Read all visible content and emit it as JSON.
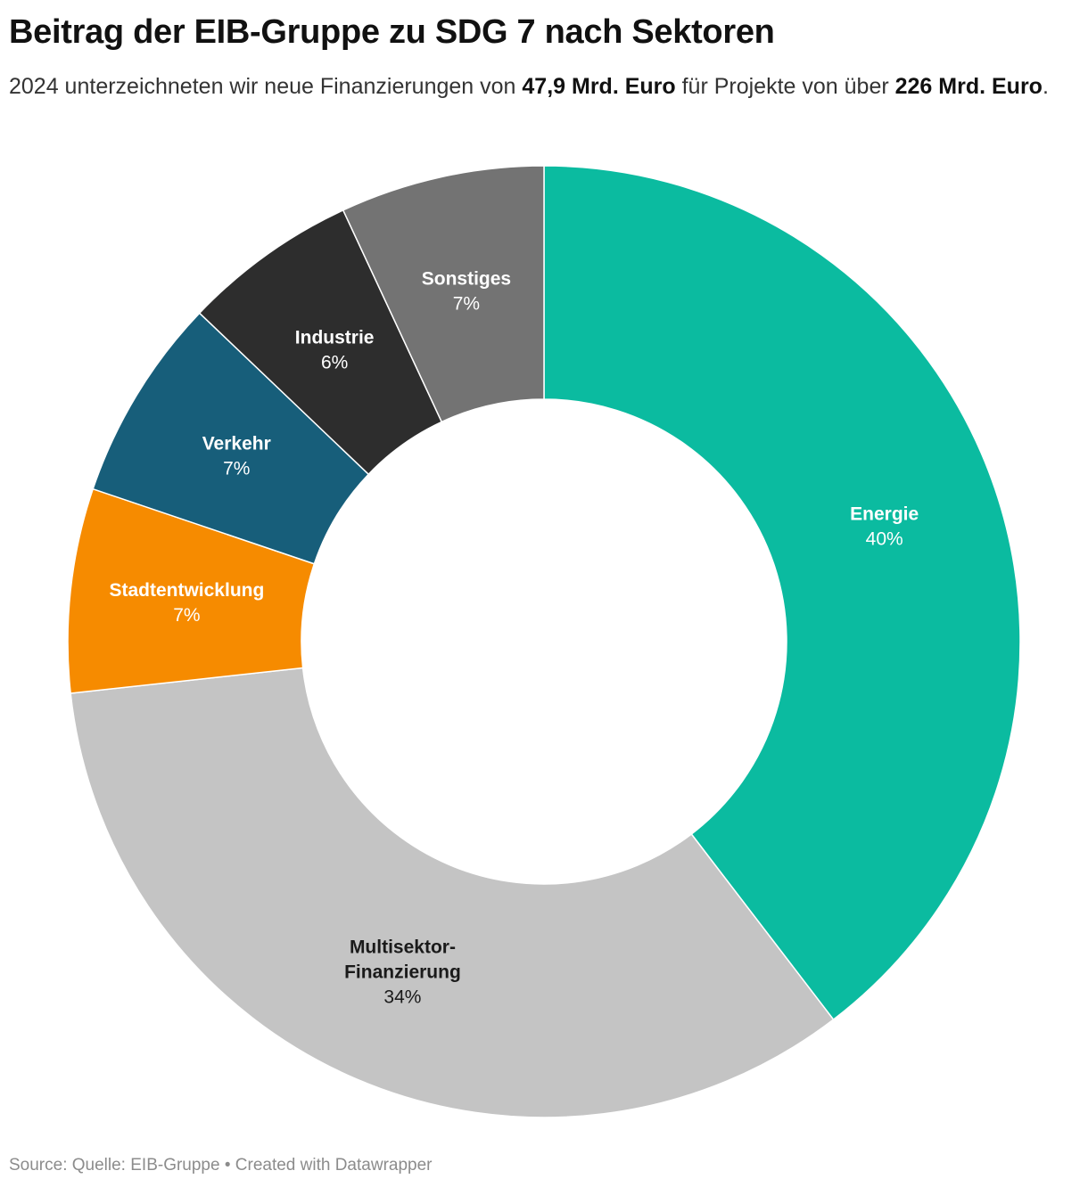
{
  "header": {
    "title": "Beitrag der EIB-Gruppe zu SDG 7 nach Sektoren",
    "subtitle_pre": "2024 unterzeichneten wir neue Finanzierungen von ",
    "subtitle_amount_1": "47,9 Mrd. Euro",
    "subtitle_mid": " für Projekte von über ",
    "subtitle_amount_2": "226 Mrd. Euro",
    "subtitle_post": "."
  },
  "footer": {
    "source": "Source: Quelle: EIB-Gruppe • Created with Datawrapper"
  },
  "chart_data": {
    "type": "pie",
    "variant": "donut",
    "title": "Beitrag der EIB-Gruppe zu SDG 7 nach Sektoren",
    "slices": [
      {
        "label": [
          "Energie"
        ],
        "value": 40,
        "value_label": "40%",
        "color": "#0bbba0",
        "text_color": "#ffffff"
      },
      {
        "label": [
          "Multisektor-",
          "Finanzierung"
        ],
        "value": 34,
        "value_label": "34%",
        "color": "#c4c4c4",
        "text_color": "#1a1a1a"
      },
      {
        "label": [
          "Stadtentwicklung"
        ],
        "value": 7,
        "value_label": "7%",
        "color": "#f68b00",
        "text_color": "#ffffff"
      },
      {
        "label": [
          "Verkehr"
        ],
        "value": 7,
        "value_label": "7%",
        "color": "#175e7a",
        "text_color": "#ffffff"
      },
      {
        "label": [
          "Industrie"
        ],
        "value": 6,
        "value_label": "6%",
        "color": "#2d2d2d",
        "text_color": "#ffffff"
      },
      {
        "label": [
          "Sonstiges"
        ],
        "value": 7,
        "value_label": "7%",
        "color": "#737373",
        "text_color": "#ffffff"
      }
    ],
    "legend": "none",
    "direction": "clockwise from top"
  }
}
